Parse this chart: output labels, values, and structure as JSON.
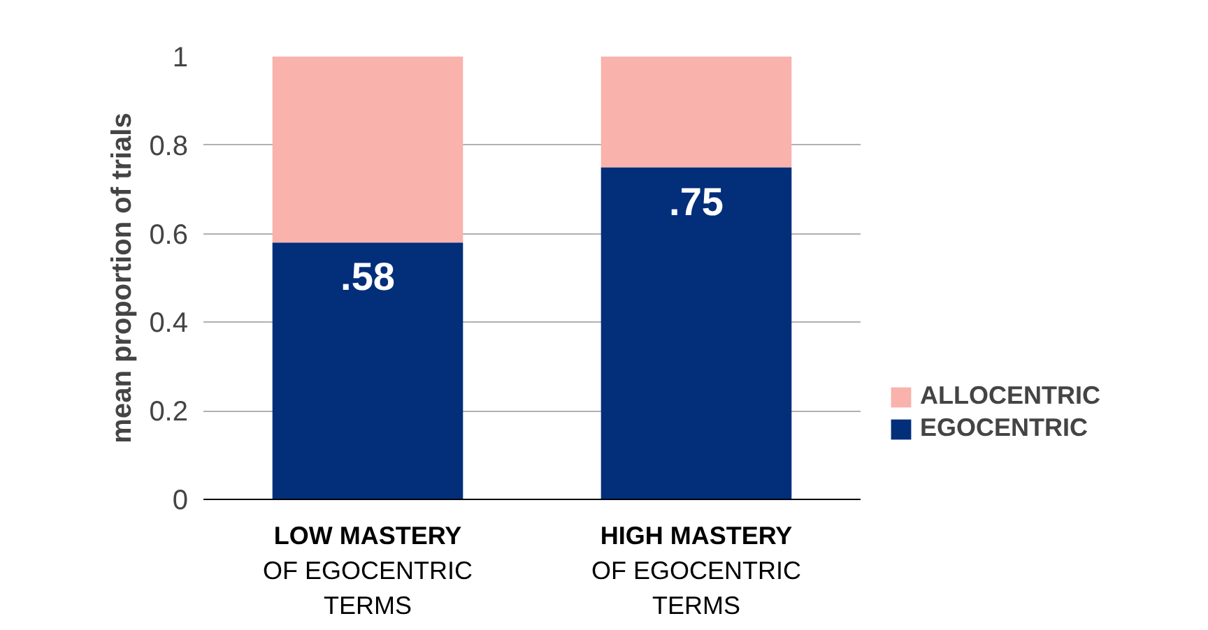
{
  "chart_data": {
    "type": "bar",
    "stacked": true,
    "ylabel": "mean proportion of trials",
    "categories": [
      "LOW MASTERY\nOF EGOCENTRIC\nTERMS",
      "HIGH MASTERY\nOF EGOCENTRIC\nTERMS"
    ],
    "series": [
      {
        "name": "EGOCENTRIC",
        "color": "#022e7a",
        "values": [
          0.58,
          0.75
        ],
        "value_labels": [
          ".58",
          ".75"
        ]
      },
      {
        "name": "ALLOCENTRIC",
        "color": "#f9b2ac",
        "values": [
          0.42,
          0.25
        ]
      }
    ],
    "ylim": [
      0,
      1
    ],
    "yticks": [
      0,
      0.2,
      0.4,
      0.6,
      0.8,
      1
    ],
    "grid": "y",
    "legend": "right"
  }
}
